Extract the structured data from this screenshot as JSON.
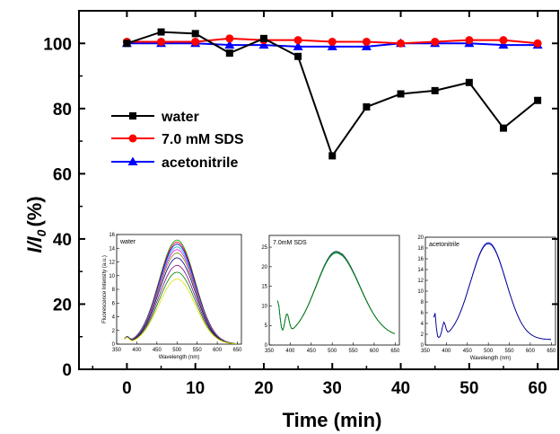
{
  "chart_data": {
    "type": "line",
    "title": "",
    "xlabel": "Time (min)",
    "ylabel": "I/I",
    "ylabel_subscript": "0",
    "ylabel_unit": "(%)",
    "xlim": [
      -7,
      63
    ],
    "ylim": [
      0,
      110
    ],
    "xticks": [
      0,
      10,
      20,
      30,
      40,
      50,
      60
    ],
    "yticks": [
      0,
      20,
      40,
      60,
      80,
      100
    ],
    "xtick_labels": [
      "0",
      "10",
      "20",
      "30",
      "40",
      "50",
      "60"
    ],
    "ytick_labels": [
      "0",
      "20",
      "40",
      "60",
      "80",
      "100"
    ],
    "legend_position": "center-left",
    "grid": false,
    "series": [
      {
        "name": "water",
        "color": "#000000",
        "marker": "square",
        "x": [
          0,
          5,
          10,
          15,
          20,
          25,
          30,
          35,
          40,
          45,
          50,
          55,
          60
        ],
        "values": [
          100,
          103.5,
          103,
          97,
          101.5,
          96,
          65.5,
          80.5,
          84.5,
          85.5,
          88,
          74,
          82.5
        ]
      },
      {
        "name": "7.0 mM SDS",
        "color": "#ff0000",
        "marker": "circle",
        "x": [
          0,
          5,
          10,
          15,
          20,
          25,
          30,
          35,
          40,
          45,
          50,
          55,
          60
        ],
        "values": [
          100.5,
          100.5,
          100.5,
          101.5,
          101,
          101,
          100.5,
          100.5,
          100,
          100.5,
          101,
          101,
          100
        ]
      },
      {
        "name": "acetonitrile",
        "color": "#0000ff",
        "marker": "triangle",
        "x": [
          0,
          5,
          10,
          15,
          20,
          25,
          30,
          35,
          40,
          45,
          50,
          55,
          60
        ],
        "values": [
          100,
          100,
          100,
          99.5,
          99.5,
          99,
          99,
          99,
          100,
          100,
          100,
          99.5,
          99.5
        ]
      }
    ],
    "insets": [
      {
        "title": "water",
        "type": "line",
        "xlabel": "Wavelength (nm)",
        "ylabel": "Fluorescence Intensity (a.u.)",
        "xlim": [
          350,
          660
        ],
        "ylim": [
          0,
          16
        ],
        "xticks": [
          350,
          400,
          450,
          500,
          550,
          600,
          650
        ],
        "yticks": [
          0,
          2,
          4,
          6,
          8,
          10,
          12,
          14,
          16
        ],
        "peak_x": 500,
        "peak_values": [
          15.2,
          14.9,
          14.6,
          14.2,
          13.8,
          13.3,
          12.6,
          11.5,
          10.5,
          9.5
        ],
        "colors": [
          "#00a000",
          "#ff0000",
          "#0000ff",
          "#00c0c0",
          "#ff00ff",
          "#808000",
          "#000080",
          "#800080",
          "#008000",
          "#e0e000"
        ]
      },
      {
        "title": "7.0mM SDS",
        "type": "line",
        "xlabel": "",
        "ylabel": "",
        "xlim": [
          350,
          660
        ],
        "ylim": [
          0,
          28
        ],
        "xticks": [
          350,
          400,
          450,
          500,
          550,
          600,
          650
        ],
        "yticks": [
          0,
          5,
          10,
          15,
          20,
          25
        ],
        "peak_x": 510,
        "peak_values": [
          21.9,
          21.7,
          21.5
        ],
        "colors": [
          "#000000",
          "#00a0a0",
          "#008000"
        ]
      },
      {
        "title": "acetonitrile",
        "type": "line",
        "xlabel": "Wavelength (nm)",
        "ylabel": "",
        "xlim": [
          350,
          660
        ],
        "ylim": [
          0,
          20
        ],
        "xticks": [
          350,
          400,
          450,
          500,
          550,
          600,
          650
        ],
        "xtick_labels": [
          "350",
          "400",
          "450",
          "500",
          "550",
          "600",
          "650"
        ],
        "yticks": [
          0,
          2,
          4,
          6,
          8,
          10,
          12,
          14,
          16,
          18,
          20
        ],
        "peak_x": 500,
        "peak_values": [
          18,
          17.8
        ],
        "colors": [
          "#0000ff",
          "#000080"
        ]
      }
    ]
  }
}
